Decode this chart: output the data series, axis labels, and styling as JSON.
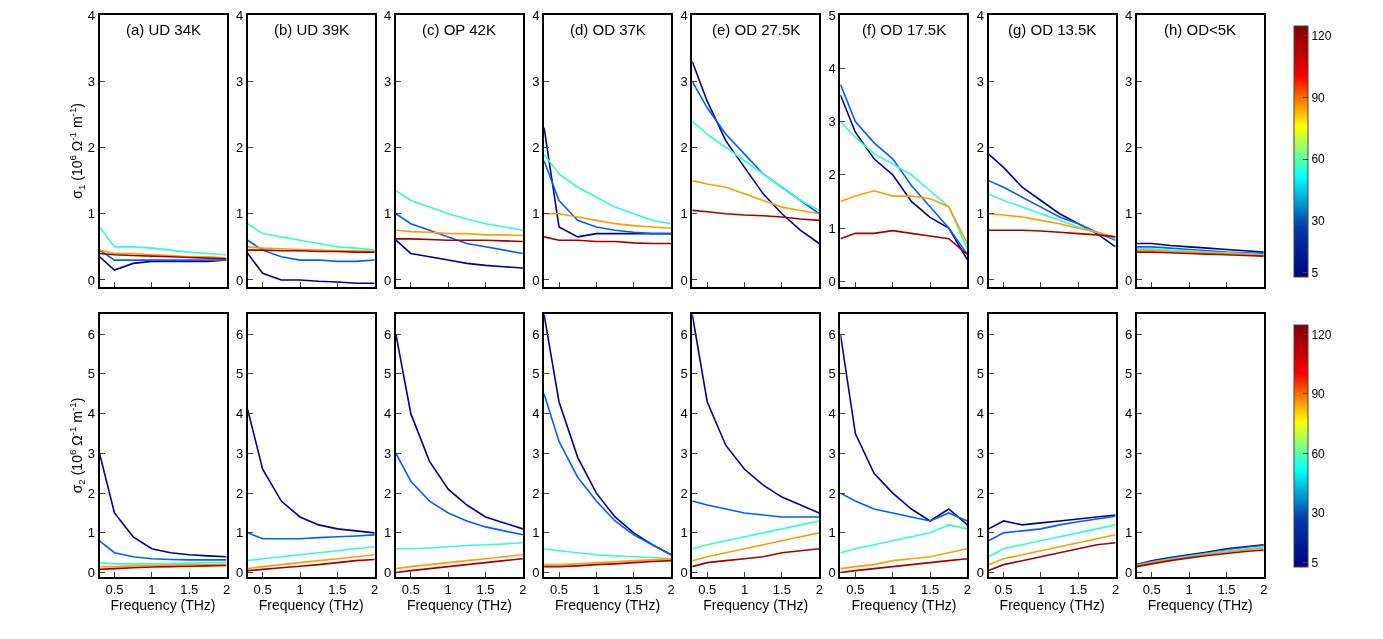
{
  "chart_data": [
    {
      "type": "line",
      "title": "(a) UD 34K",
      "ylabel": "σ$_{1}$ (10$^{6}$ Ω$^{-1}$ m$^{-1}$)",
      "x": [
        0.3,
        0.5,
        0.75,
        1,
        1.25,
        1.5,
        1.75,
        2
      ],
      "xlim": [
        0.3,
        2
      ],
      "xticks": [
        0.5,
        1,
        1.5,
        2
      ],
      "ylim": [
        -0.1,
        4
      ],
      "yticks": [
        0,
        1,
        2,
        3,
        4
      ],
      "tick_labels": "y",
      "series": [
        {
          "color": "#00009f",
          "values": [
            0.35,
            0.15,
            0.25,
            0.28,
            0.28,
            0.28,
            0.28,
            0.3
          ]
        },
        {
          "color": "#0060ff",
          "values": [
            0.45,
            0.3,
            0.3,
            0.3,
            0.3,
            0.3,
            0.3,
            0.3
          ]
        },
        {
          "color": "#30ffcf",
          "values": [
            0.8,
            0.5,
            0.5,
            0.48,
            0.45,
            0.42,
            0.4,
            0.38
          ]
        },
        {
          "color": "#ff9e00",
          "values": [
            0.45,
            0.4,
            0.4,
            0.38,
            0.37,
            0.35,
            0.35,
            0.33
          ]
        },
        {
          "color": "#a80000",
          "values": [
            0.4,
            0.38,
            0.37,
            0.36,
            0.35,
            0.34,
            0.33,
            0.32
          ]
        }
      ]
    },
    {
      "type": "line",
      "title": "(b) UD 39K",
      "x": [
        0.3,
        0.5,
        0.75,
        1,
        1.25,
        1.5,
        1.75,
        2
      ],
      "xlim": [
        0.3,
        2
      ],
      "xticks": [
        0.5,
        1,
        1.5,
        2
      ],
      "ylim": [
        -0.1,
        4
      ],
      "yticks": [
        0,
        1,
        2,
        3,
        4
      ],
      "tick_labels": "y",
      "series": [
        {
          "color": "#00009f",
          "values": [
            0.4,
            0.1,
            0,
            0,
            -0.02,
            -0.03,
            -0.05,
            -0.05
          ]
        },
        {
          "color": "#0060ff",
          "values": [
            0.6,
            0.45,
            0.35,
            0.3,
            0.3,
            0.28,
            0.28,
            0.3
          ]
        },
        {
          "color": "#30ffcf",
          "values": [
            0.85,
            0.7,
            0.65,
            0.6,
            0.55,
            0.5,
            0.48,
            0.45
          ]
        },
        {
          "color": "#ff9e00",
          "values": [
            0.5,
            0.48,
            0.47,
            0.46,
            0.45,
            0.44,
            0.44,
            0.43
          ]
        },
        {
          "color": "#a80000",
          "values": [
            0.45,
            0.45,
            0.44,
            0.44,
            0.43,
            0.43,
            0.42,
            0.42
          ]
        }
      ]
    },
    {
      "type": "line",
      "title": "(c) OP 42K",
      "x": [
        0.3,
        0.5,
        0.75,
        1,
        1.25,
        1.5,
        1.75,
        2
      ],
      "xlim": [
        0.3,
        2
      ],
      "xticks": [
        0.5,
        1,
        1.5,
        2
      ],
      "ylim": [
        -0.1,
        4
      ],
      "yticks": [
        0,
        1,
        2,
        3,
        4
      ],
      "tick_labels": "y",
      "series": [
        {
          "color": "#00009f",
          "values": [
            0.6,
            0.4,
            0.35,
            0.3,
            0.25,
            0.22,
            0.2,
            0.18
          ]
        },
        {
          "color": "#0060ff",
          "values": [
            1.0,
            0.85,
            0.75,
            0.65,
            0.55,
            0.5,
            0.45,
            0.4
          ]
        },
        {
          "color": "#30ffcf",
          "values": [
            1.35,
            1.2,
            1.1,
            1.0,
            0.92,
            0.85,
            0.8,
            0.75
          ]
        },
        {
          "color": "#ff9e00",
          "values": [
            0.75,
            0.73,
            0.72,
            0.7,
            0.7,
            0.68,
            0.68,
            0.67
          ]
        },
        {
          "color": "#a80000",
          "values": [
            0.62,
            0.62,
            0.61,
            0.6,
            0.6,
            0.6,
            0.59,
            0.58
          ]
        }
      ]
    },
    {
      "type": "line",
      "title": "(d) OD 37K",
      "x": [
        0.3,
        0.5,
        0.75,
        1,
        1.25,
        1.5,
        1.75,
        2
      ],
      "xlim": [
        0.3,
        2
      ],
      "xticks": [
        0.5,
        1,
        1.5,
        2
      ],
      "ylim": [
        -0.1,
        4
      ],
      "yticks": [
        0,
        1,
        2,
        3,
        4
      ],
      "tick_labels": "y",
      "series": [
        {
          "color": "#00009f",
          "values": [
            2.3,
            0.8,
            0.65,
            0.7,
            0.7,
            0.7,
            0.7,
            0.7
          ]
        },
        {
          "color": "#0060ff",
          "values": [
            1.8,
            1.2,
            0.9,
            0.8,
            0.75,
            0.72,
            0.7,
            0.7
          ]
        },
        {
          "color": "#30ffcf",
          "values": [
            1.9,
            1.6,
            1.4,
            1.25,
            1.1,
            1.0,
            0.9,
            0.85
          ]
        },
        {
          "color": "#ff9e00",
          "values": [
            1.0,
            1.0,
            0.95,
            0.9,
            0.85,
            0.82,
            0.8,
            0.78
          ]
        },
        {
          "color": "#a80000",
          "values": [
            0.65,
            0.6,
            0.6,
            0.58,
            0.58,
            0.56,
            0.55,
            0.55
          ]
        }
      ]
    },
    {
      "type": "line",
      "title": "(e) OD 27.5K",
      "x": [
        0.3,
        0.5,
        0.75,
        1,
        1.25,
        1.5,
        1.75,
        2
      ],
      "xlim": [
        0.3,
        2
      ],
      "xticks": [
        0.5,
        1,
        1.5,
        2
      ],
      "ylim": [
        -0.1,
        4
      ],
      "yticks": [
        0,
        1,
        2,
        3,
        4
      ],
      "tick_labels": "y",
      "series": [
        {
          "color": "#00009f",
          "values": [
            3.3,
            2.7,
            2.1,
            1.7,
            1.3,
            1.0,
            0.75,
            0.55
          ]
        },
        {
          "color": "#0060ff",
          "values": [
            3.0,
            2.6,
            2.2,
            1.9,
            1.6,
            1.4,
            1.2,
            1.0
          ]
        },
        {
          "color": "#30ffcf",
          "values": [
            2.4,
            2.2,
            2.0,
            1.8,
            1.6,
            1.4,
            1.2,
            1.05
          ]
        },
        {
          "color": "#ff9e00",
          "values": [
            1.5,
            1.45,
            1.4,
            1.3,
            1.2,
            1.1,
            1.05,
            1.0
          ]
        },
        {
          "color": "#a80000",
          "values": [
            1.05,
            1.03,
            1.0,
            0.98,
            0.97,
            0.95,
            0.92,
            0.9
          ]
        }
      ]
    },
    {
      "type": "line",
      "title": "(f) OD 17.5K",
      "x": [
        0.3,
        0.5,
        0.75,
        1,
        1.25,
        1.5,
        1.75,
        2
      ],
      "xlim": [
        0.3,
        2
      ],
      "xticks": [
        0.5,
        1,
        1.5,
        2
      ],
      "ylim": [
        -0.1,
        5
      ],
      "yticks": [
        0,
        1,
        2,
        3,
        4,
        5
      ],
      "tick_labels": "y",
      "series": [
        {
          "color": "#00009f",
          "values": [
            3.5,
            2.8,
            2.3,
            2.0,
            1.5,
            1.2,
            1.0,
            0.4
          ]
        },
        {
          "color": "#0060ff",
          "values": [
            3.7,
            3.0,
            2.6,
            2.3,
            1.8,
            1.4,
            1.0,
            0.5
          ]
        },
        {
          "color": "#30ffcf",
          "values": [
            3.0,
            2.7,
            2.4,
            2.2,
            2.0,
            1.7,
            1.4,
            0.6
          ]
        },
        {
          "color": "#ff9e00",
          "values": [
            1.5,
            1.6,
            1.7,
            1.6,
            1.6,
            1.55,
            1.4,
            0.7
          ]
        },
        {
          "color": "#a80000",
          "values": [
            0.8,
            0.9,
            0.9,
            0.95,
            0.9,
            0.85,
            0.8,
            0.5
          ]
        }
      ]
    },
    {
      "type": "line",
      "title": "(g) OD 13.5K",
      "x": [
        0.3,
        0.5,
        0.75,
        1,
        1.25,
        1.5,
        1.75,
        2
      ],
      "xlim": [
        0.3,
        2
      ],
      "xticks": [
        0.5,
        1,
        1.5,
        2
      ],
      "ylim": [
        -0.1,
        4
      ],
      "yticks": [
        0,
        1,
        2,
        3,
        4
      ],
      "tick_labels": "y",
      "series": [
        {
          "color": "#00009f",
          "values": [
            1.9,
            1.7,
            1.4,
            1.2,
            1.0,
            0.85,
            0.7,
            0.5
          ]
        },
        {
          "color": "#0060ff",
          "values": [
            1.5,
            1.4,
            1.25,
            1.1,
            0.95,
            0.85,
            0.72,
            0.6
          ]
        },
        {
          "color": "#30ffcf",
          "values": [
            1.3,
            1.2,
            1.1,
            1.0,
            0.9,
            0.8,
            0.72,
            0.62
          ]
        },
        {
          "color": "#ff9e00",
          "values": [
            1.0,
            0.98,
            0.95,
            0.9,
            0.85,
            0.78,
            0.72,
            0.65
          ]
        },
        {
          "color": "#a80000",
          "values": [
            0.75,
            0.75,
            0.75,
            0.74,
            0.72,
            0.7,
            0.68,
            0.65
          ]
        }
      ]
    },
    {
      "type": "line",
      "title": "(h) OD<5K",
      "x": [
        0.3,
        0.5,
        0.75,
        1,
        1.25,
        1.5,
        1.75,
        2
      ],
      "xlim": [
        0.3,
        2
      ],
      "xticks": [
        0.5,
        1,
        1.5,
        2
      ],
      "ylim": [
        -0.1,
        4
      ],
      "yticks": [
        0,
        1,
        2,
        3,
        4
      ],
      "tick_labels": "y",
      "clim": [
        3,
        125
      ],
      "cticks": [
        5,
        30,
        60,
        90,
        120
      ],
      "series": [
        {
          "color": "#00009f",
          "values": [
            0.55,
            0.55,
            0.52,
            0.5,
            0.48,
            0.46,
            0.44,
            0.42
          ]
        },
        {
          "color": "#0060ff",
          "values": [
            0.5,
            0.5,
            0.48,
            0.46,
            0.44,
            0.42,
            0.41,
            0.4
          ]
        },
        {
          "color": "#30ffcf",
          "values": [
            0.47,
            0.47,
            0.45,
            0.44,
            0.42,
            0.41,
            0.4,
            0.38
          ]
        },
        {
          "color": "#ff9e00",
          "values": [
            0.45,
            0.45,
            0.43,
            0.42,
            0.41,
            0.4,
            0.39,
            0.37
          ]
        },
        {
          "color": "#a80000",
          "values": [
            0.42,
            0.42,
            0.41,
            0.4,
            0.39,
            0.38,
            0.37,
            0.36
          ]
        }
      ]
    },
    {
      "type": "line",
      "xlabel": "Frequency (THz)",
      "ylabel": "σ$_{2}$ (10$^{6}$ Ω$^{-1}$ m$^{-1}$)",
      "x": [
        0.3,
        0.5,
        0.75,
        1,
        1.25,
        1.5,
        1.75,
        2
      ],
      "xlim": [
        0.3,
        2
      ],
      "xticks": [
        0.5,
        1,
        1.5,
        2
      ],
      "ylim": [
        -0.1,
        6.5
      ],
      "yticks": [
        0,
        1,
        2,
        3,
        4,
        5,
        6
      ],
      "series": [
        {
          "color": "#00009f",
          "values": [
            3.0,
            1.5,
            0.9,
            0.6,
            0.5,
            0.45,
            0.42,
            0.4
          ]
        },
        {
          "color": "#0060ff",
          "values": [
            0.8,
            0.5,
            0.4,
            0.35,
            0.33,
            0.32,
            0.32,
            0.32
          ]
        },
        {
          "color": "#30ffcf",
          "values": [
            0.25,
            0.22,
            0.22,
            0.22,
            0.23,
            0.24,
            0.25,
            0.26
          ]
        },
        {
          "color": "#ff9e00",
          "values": [
            0.15,
            0.15,
            0.17,
            0.18,
            0.19,
            0.2,
            0.2,
            0.21
          ]
        },
        {
          "color": "#a80000",
          "values": [
            0.08,
            0.1,
            0.12,
            0.14,
            0.15,
            0.16,
            0.17,
            0.18
          ]
        }
      ]
    },
    {
      "type": "line",
      "xlabel": "Frequency (THz)",
      "x": [
        0.3,
        0.5,
        0.75,
        1,
        1.25,
        1.5,
        1.75,
        2
      ],
      "xlim": [
        0.3,
        2
      ],
      "xticks": [
        0.5,
        1,
        1.5,
        2
      ],
      "ylim": [
        -0.1,
        6.5
      ],
      "yticks": [
        0,
        1,
        2,
        3,
        4,
        5,
        6
      ],
      "series": [
        {
          "color": "#00009f",
          "values": [
            4.1,
            2.6,
            1.8,
            1.4,
            1.2,
            1.1,
            1.05,
            1.0
          ]
        },
        {
          "color": "#0060ff",
          "values": [
            1.0,
            0.85,
            0.85,
            0.85,
            0.88,
            0.9,
            0.92,
            0.95
          ]
        },
        {
          "color": "#30ffcf",
          "values": [
            0.3,
            0.35,
            0.4,
            0.45,
            0.5,
            0.55,
            0.6,
            0.65
          ]
        },
        {
          "color": "#ff9e00",
          "values": [
            0.1,
            0.15,
            0.2,
            0.25,
            0.3,
            0.35,
            0.4,
            0.45
          ]
        },
        {
          "color": "#a80000",
          "values": [
            0.05,
            0.08,
            0.12,
            0.16,
            0.2,
            0.25,
            0.3,
            0.33
          ]
        }
      ]
    },
    {
      "type": "line",
      "xlabel": "Frequency (THz)",
      "x": [
        0.3,
        0.5,
        0.75,
        1,
        1.25,
        1.5,
        1.75,
        2
      ],
      "xlim": [
        0.3,
        2
      ],
      "xticks": [
        0.5,
        1,
        1.5,
        2
      ],
      "ylim": [
        -0.1,
        6.5
      ],
      "yticks": [
        0,
        1,
        2,
        3,
        4,
        5,
        6
      ],
      "series": [
        {
          "color": "#00009f",
          "values": [
            6.0,
            4.0,
            2.8,
            2.1,
            1.7,
            1.4,
            1.25,
            1.1
          ]
        },
        {
          "color": "#0060ff",
          "values": [
            3.0,
            2.3,
            1.8,
            1.5,
            1.3,
            1.15,
            1.05,
            0.95
          ]
        },
        {
          "color": "#30ffcf",
          "values": [
            0.6,
            0.6,
            0.62,
            0.65,
            0.68,
            0.7,
            0.72,
            0.75
          ]
        },
        {
          "color": "#ff9e00",
          "values": [
            0.1,
            0.15,
            0.2,
            0.25,
            0.3,
            0.35,
            0.4,
            0.45
          ]
        },
        {
          "color": "#a80000",
          "values": [
            0.0,
            0.05,
            0.1,
            0.15,
            0.2,
            0.25,
            0.3,
            0.35
          ]
        }
      ]
    },
    {
      "type": "line",
      "xlabel": "Frequency (THz)",
      "x": [
        0.3,
        0.5,
        0.75,
        1,
        1.25,
        1.5,
        1.75,
        2
      ],
      "xlim": [
        0.3,
        2
      ],
      "xticks": [
        0.5,
        1,
        1.5,
        2
      ],
      "ylim": [
        -0.1,
        6.5
      ],
      "yticks": [
        0,
        1,
        2,
        3,
        4,
        5,
        6
      ],
      "series": [
        {
          "color": "#00009f",
          "values": [
            6.5,
            4.3,
            2.9,
            2.0,
            1.4,
            1.0,
            0.7,
            0.45
          ]
        },
        {
          "color": "#0060ff",
          "values": [
            4.5,
            3.3,
            2.4,
            1.8,
            1.3,
            0.95,
            0.7,
            0.45
          ]
        },
        {
          "color": "#30ffcf",
          "values": [
            0.6,
            0.55,
            0.5,
            0.45,
            0.42,
            0.4,
            0.38,
            0.35
          ]
        },
        {
          "color": "#ff9e00",
          "values": [
            0.2,
            0.2,
            0.22,
            0.25,
            0.27,
            0.3,
            0.32,
            0.35
          ]
        },
        {
          "color": "#a80000",
          "values": [
            0.15,
            0.15,
            0.17,
            0.2,
            0.22,
            0.25,
            0.28,
            0.3
          ]
        }
      ]
    },
    {
      "type": "line",
      "xlabel": "Frequency (THz)",
      "x": [
        0.3,
        0.5,
        0.75,
        1,
        1.25,
        1.5,
        1.75,
        2
      ],
      "xlim": [
        0.3,
        2
      ],
      "xticks": [
        0.5,
        1,
        1.5,
        2
      ],
      "ylim": [
        -0.1,
        6.5
      ],
      "yticks": [
        0,
        1,
        2,
        3,
        4,
        5,
        6
      ],
      "series": [
        {
          "color": "#00009f",
          "values": [
            6.5,
            4.3,
            3.2,
            2.6,
            2.2,
            1.9,
            1.7,
            1.5
          ]
        },
        {
          "color": "#0060ff",
          "values": [
            1.8,
            1.7,
            1.6,
            1.5,
            1.45,
            1.4,
            1.4,
            1.4
          ]
        },
        {
          "color": "#30ffcf",
          "values": [
            0.6,
            0.7,
            0.8,
            0.9,
            1.0,
            1.1,
            1.2,
            1.3
          ]
        },
        {
          "color": "#ff9e00",
          "values": [
            0.3,
            0.4,
            0.5,
            0.6,
            0.7,
            0.8,
            0.9,
            1.0
          ]
        },
        {
          "color": "#a80000",
          "values": [
            0.15,
            0.25,
            0.3,
            0.35,
            0.4,
            0.5,
            0.55,
            0.6
          ]
        }
      ]
    },
    {
      "type": "line",
      "xlabel": "Frequency (THz)",
      "x": [
        0.3,
        0.5,
        0.75,
        1,
        1.25,
        1.5,
        1.75,
        2
      ],
      "xlim": [
        0.3,
        2
      ],
      "xticks": [
        0.5,
        1,
        1.5,
        2
      ],
      "ylim": [
        -0.1,
        6.5
      ],
      "yticks": [
        0,
        1,
        2,
        3,
        4,
        5,
        6
      ],
      "series": [
        {
          "color": "#00009f",
          "values": [
            6.0,
            3.5,
            2.5,
            2.0,
            1.6,
            1.3,
            1.6,
            1.2
          ]
        },
        {
          "color": "#0060ff",
          "values": [
            2.0,
            1.8,
            1.6,
            1.5,
            1.4,
            1.3,
            1.5,
            1.3
          ]
        },
        {
          "color": "#30ffcf",
          "values": [
            0.5,
            0.6,
            0.7,
            0.8,
            0.9,
            1.0,
            1.2,
            1.1
          ]
        },
        {
          "color": "#ff9e00",
          "values": [
            0.1,
            0.15,
            0.2,
            0.3,
            0.35,
            0.4,
            0.5,
            0.6
          ]
        },
        {
          "color": "#a80000",
          "values": [
            0.0,
            0.05,
            0.1,
            0.15,
            0.2,
            0.25,
            0.3,
            0.35
          ]
        }
      ]
    },
    {
      "type": "line",
      "xlabel": "Frequency (THz)",
      "x": [
        0.3,
        0.5,
        0.75,
        1,
        1.25,
        1.5,
        1.75,
        2
      ],
      "xlim": [
        0.3,
        2
      ],
      "xticks": [
        0.5,
        1,
        1.5,
        2
      ],
      "ylim": [
        -0.1,
        6.5
      ],
      "yticks": [
        0,
        1,
        2,
        3,
        4,
        5,
        6
      ],
      "series": [
        {
          "color": "#00009f",
          "values": [
            1.1,
            1.3,
            1.2,
            1.25,
            1.3,
            1.35,
            1.4,
            1.45
          ]
        },
        {
          "color": "#0060ff",
          "values": [
            0.8,
            1.0,
            1.05,
            1.1,
            1.2,
            1.28,
            1.35,
            1.42
          ]
        },
        {
          "color": "#30ffcf",
          "values": [
            0.4,
            0.6,
            0.7,
            0.8,
            0.9,
            1.0,
            1.1,
            1.2
          ]
        },
        {
          "color": "#ff9e00",
          "values": [
            0.2,
            0.35,
            0.45,
            0.55,
            0.65,
            0.75,
            0.85,
            0.95
          ]
        },
        {
          "color": "#a80000",
          "values": [
            0.05,
            0.2,
            0.3,
            0.4,
            0.5,
            0.6,
            0.7,
            0.75
          ]
        }
      ]
    },
    {
      "type": "line",
      "xlabel": "Frequency (THz)",
      "x": [
        0.3,
        0.5,
        0.75,
        1,
        1.25,
        1.5,
        1.75,
        2
      ],
      "xlim": [
        0.3,
        2
      ],
      "xticks": [
        0.5,
        1,
        1.5,
        2
      ],
      "ylim": [
        -0.1,
        6.5
      ],
      "yticks": [
        0,
        1,
        2,
        3,
        4,
        5,
        6
      ],
      "clim": [
        3,
        125
      ],
      "cticks": [
        5,
        30,
        60,
        90,
        120
      ],
      "series": [
        {
          "color": "#00009f",
          "values": [
            0.2,
            0.3,
            0.38,
            0.45,
            0.52,
            0.6,
            0.65,
            0.7
          ]
        },
        {
          "color": "#0060ff",
          "values": [
            0.2,
            0.28,
            0.36,
            0.43,
            0.5,
            0.57,
            0.63,
            0.68
          ]
        },
        {
          "color": "#30ffcf",
          "values": [
            0.18,
            0.26,
            0.34,
            0.41,
            0.48,
            0.55,
            0.6,
            0.65
          ]
        },
        {
          "color": "#ff9e00",
          "values": [
            0.17,
            0.25,
            0.32,
            0.39,
            0.46,
            0.52,
            0.57,
            0.62
          ]
        },
        {
          "color": "#a80000",
          "values": [
            0.15,
            0.22,
            0.3,
            0.37,
            0.43,
            0.48,
            0.53,
            0.57
          ]
        }
      ]
    }
  ]
}
